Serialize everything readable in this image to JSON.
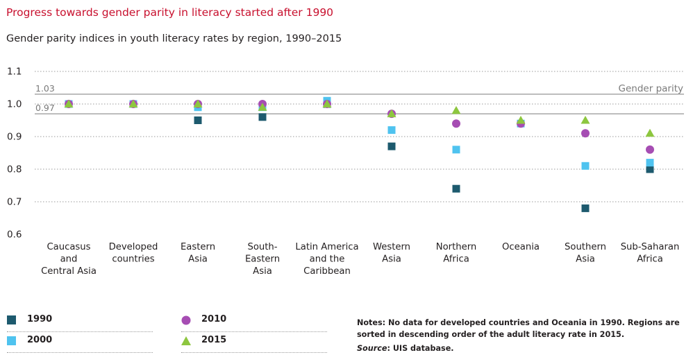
{
  "title": "Progress towards gender parity in literacy started after 1990",
  "subtitle": "Gender parity indices in youth literacy rates by region, 1990–2015",
  "colors": {
    "title": "#c8102e",
    "s1990": "#1d5a6e",
    "s2000": "#4fc3ef",
    "s2010": "#a64db3",
    "s2015": "#8dc63f",
    "grid": "#9a9a9a",
    "parity_line": "#7a7a7a"
  },
  "chart_data": {
    "type": "scatter",
    "title": "Progress towards gender parity in literacy started after 1990",
    "subtitle": "Gender parity indices in youth literacy rates by region, 1990–2015",
    "ylim": [
      0.6,
      1.1
    ],
    "yticks": [
      0.6,
      0.7,
      0.8,
      0.9,
      1.0,
      1.1
    ],
    "ytick_labels": [
      "0.6",
      "0.7",
      "0.8",
      "0.9",
      "1.0",
      "1.1"
    ],
    "parity_band": {
      "upper": 1.03,
      "lower": 0.97,
      "upper_label": "1.03",
      "lower_label": "0.97",
      "name": "Gender parity"
    },
    "categories": [
      [
        "Caucasus",
        "and",
        "Central Asia"
      ],
      [
        "Developed",
        "countries"
      ],
      [
        "Eastern",
        "Asia"
      ],
      [
        "South-",
        "Eastern",
        "Asia"
      ],
      [
        "Latin America",
        "and the",
        "Caribbean"
      ],
      [
        "Western",
        "Asia"
      ],
      [
        "Northern",
        "Africa"
      ],
      [
        "Oceania"
      ],
      [
        "Southern",
        "Asia"
      ],
      [
        "Sub-Saharan",
        "Africa"
      ]
    ],
    "series": [
      {
        "name": "1990",
        "marker": "square",
        "color": "#1d5a6e",
        "values": [
          1.0,
          null,
          0.95,
          0.96,
          1.0,
          0.87,
          0.74,
          null,
          0.68,
          0.8
        ]
      },
      {
        "name": "2000",
        "marker": "square",
        "color": "#4fc3ef",
        "values": [
          1.0,
          1.0,
          0.99,
          0.99,
          1.01,
          0.92,
          0.86,
          0.94,
          0.81,
          0.82
        ]
      },
      {
        "name": "2010",
        "marker": "circle",
        "color": "#a64db3",
        "values": [
          1.0,
          1.0,
          1.0,
          1.0,
          1.0,
          0.97,
          0.94,
          0.94,
          0.91,
          0.86
        ]
      },
      {
        "name": "2015",
        "marker": "triangle",
        "color": "#8dc63f",
        "values": [
          1.0,
          1.0,
          1.0,
          0.99,
          1.0,
          0.97,
          0.98,
          0.95,
          0.95,
          0.91
        ]
      }
    ]
  },
  "legend": {
    "items": [
      {
        "label": "1990"
      },
      {
        "label": "2000"
      },
      {
        "label": "2010"
      },
      {
        "label": "2015"
      }
    ]
  },
  "notes": {
    "line1": "Notes: No data for developed countries and Oceania in 1990. Regions are sorted in descending order of the adult literacy rate in 2015.",
    "source_label": "Source",
    "source_text": ": UIS database."
  }
}
